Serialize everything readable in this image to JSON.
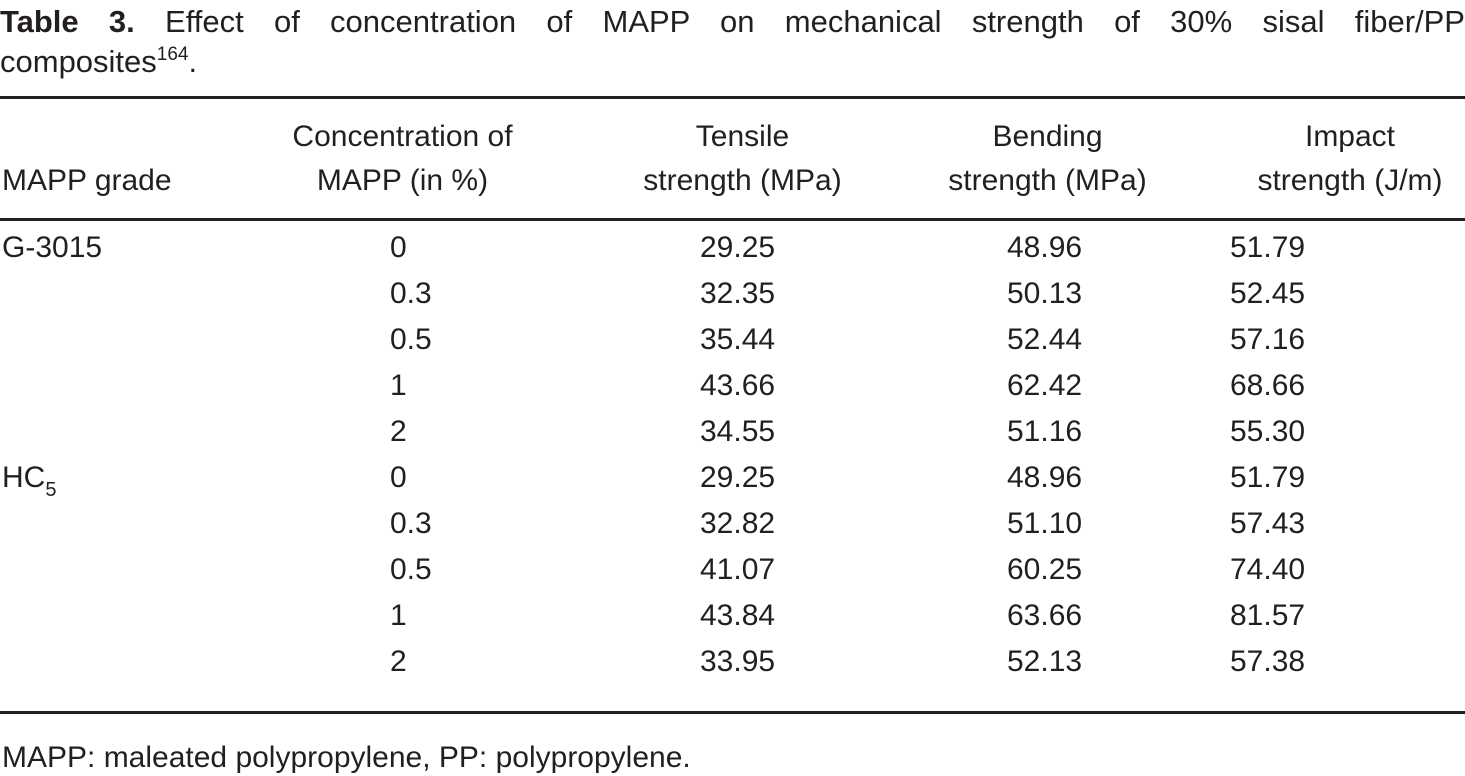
{
  "title": {
    "label": "Table 3.",
    "line1": "Effect of concentration of MAPP on mechanical strength of 30% sisal fiber/PP",
    "line2": "composites",
    "reference": "164",
    "period": "."
  },
  "table": {
    "columns": [
      {
        "line1": "MAPP grade",
        "line2": ""
      },
      {
        "line1": "Concentration of",
        "line2": "MAPP (in %)"
      },
      {
        "line1": "Tensile",
        "line2": "strength (MPa)"
      },
      {
        "line1": "Bending",
        "line2": "strength (MPa)"
      },
      {
        "line1": "Impact",
        "line2": "strength (J/m)"
      }
    ],
    "groups": [
      {
        "grade": "G-3015",
        "grade_sub": "",
        "rows": [
          {
            "concentration": "0",
            "tensile": "29.25",
            "bending": "48.96",
            "impact": "51.79"
          },
          {
            "concentration": "0.3",
            "tensile": "32.35",
            "bending": "50.13",
            "impact": "52.45"
          },
          {
            "concentration": "0.5",
            "tensile": "35.44",
            "bending": "52.44",
            "impact": "57.16"
          },
          {
            "concentration": "1",
            "tensile": "43.66",
            "bending": "62.42",
            "impact": "68.66"
          },
          {
            "concentration": "2",
            "tensile": "34.55",
            "bending": "51.16",
            "impact": "55.30"
          }
        ]
      },
      {
        "grade": "HC",
        "grade_sub": "5",
        "rows": [
          {
            "concentration": "0",
            "tensile": "29.25",
            "bending": "48.96",
            "impact": "51.79"
          },
          {
            "concentration": "0.3",
            "tensile": "32.82",
            "bending": "51.10",
            "impact": "57.43"
          },
          {
            "concentration": "0.5",
            "tensile": "41.07",
            "bending": "60.25",
            "impact": "74.40"
          },
          {
            "concentration": "1",
            "tensile": "43.84",
            "bending": "63.66",
            "impact": "81.57"
          },
          {
            "concentration": "2",
            "tensile": "33.95",
            "bending": "52.13",
            "impact": "57.38"
          }
        ]
      }
    ]
  },
  "footnote": "MAPP: maleated polypropylene, PP: polypropylene.",
  "colors": {
    "text": "#231f20",
    "rule": "#231f20",
    "background": "#ffffff"
  }
}
